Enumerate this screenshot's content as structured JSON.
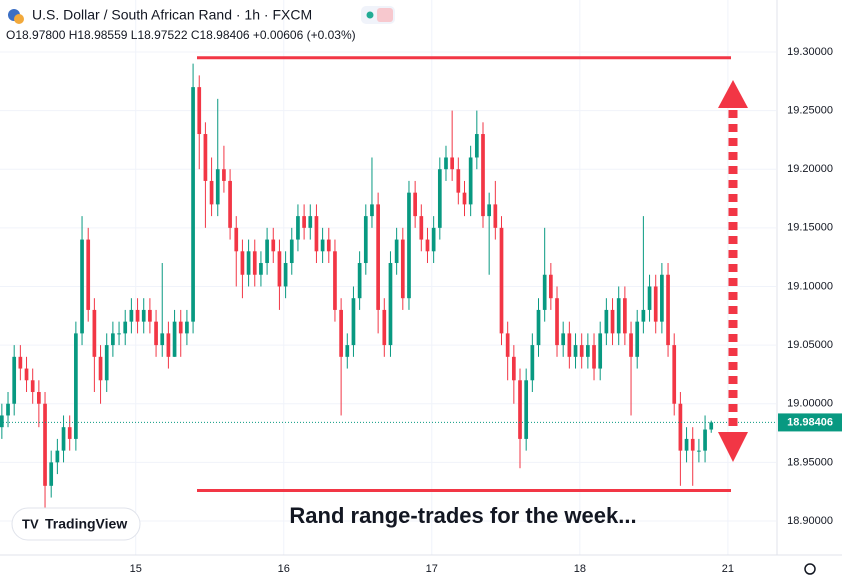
{
  "chart_data": {
    "type": "candlestick",
    "title": "U.S. Dollar / South African Rand · 1h · FXCM",
    "ohlc_header": "O18.97800 H18.98559 L18.97522 C18.98406 +0.00606 (+0.03%)",
    "annotation": "Rand range-trades for the week...",
    "logo": "TradingView",
    "up_color": "#089981",
    "down_color": "#f23645",
    "annotation_color": "#f23645",
    "range_lines": [
      19.295,
      18.926
    ],
    "ylim": [
      18.871,
      19.3443
    ],
    "yticks": [
      {
        "value": 18.9,
        "label": "18.90000"
      },
      {
        "value": 18.95,
        "label": "18.95000"
      },
      {
        "value": 19.0,
        "label": "19.00000"
      },
      {
        "value": 19.05,
        "label": "19.05000"
      },
      {
        "value": 19.1,
        "label": "19.10000"
      },
      {
        "value": 19.15,
        "label": "19.15000"
      },
      {
        "value": 19.2,
        "label": "19.20000"
      },
      {
        "value": 19.25,
        "label": "19.25000"
      },
      {
        "value": 19.3,
        "label": "19.30000"
      }
    ],
    "xlim": [
      -0.3,
      125.5
    ],
    "xticks": [
      {
        "value": 21.7,
        "label": "15"
      },
      {
        "value": 45.7,
        "label": "16"
      },
      {
        "value": 69.7,
        "label": "17"
      },
      {
        "value": 93.7,
        "label": "18"
      },
      {
        "value": 117.7,
        "label": "21"
      }
    ],
    "grid": true,
    "ohlc": [
      [
        18.98,
        19.0,
        18.97,
        18.99
      ],
      [
        18.99,
        19.01,
        18.98,
        19.0
      ],
      [
        19.0,
        19.05,
        18.99,
        19.04
      ],
      [
        19.04,
        19.05,
        19.02,
        19.03
      ],
      [
        19.03,
        19.04,
        19.01,
        19.02
      ],
      [
        19.02,
        19.03,
        19.0,
        19.01
      ],
      [
        19.01,
        19.02,
        18.98,
        19.0
      ],
      [
        19.0,
        19.01,
        18.91,
        18.93
      ],
      [
        18.93,
        18.96,
        18.92,
        18.95
      ],
      [
        18.95,
        18.97,
        18.94,
        18.96
      ],
      [
        18.96,
        18.99,
        18.95,
        18.98
      ],
      [
        18.98,
        18.99,
        18.96,
        18.97
      ],
      [
        18.97,
        19.07,
        18.96,
        19.06
      ],
      [
        19.06,
        19.16,
        19.05,
        19.14
      ],
      [
        19.14,
        19.15,
        19.07,
        19.08
      ],
      [
        19.08,
        19.09,
        19.01,
        19.04
      ],
      [
        19.04,
        19.05,
        19.0,
        19.02
      ],
      [
        19.02,
        19.06,
        19.01,
        19.05
      ],
      [
        19.05,
        19.07,
        19.04,
        19.06
      ],
      [
        19.06,
        19.07,
        19.05,
        19.06
      ],
      [
        19.06,
        19.08,
        19.05,
        19.07
      ],
      [
        19.07,
        19.09,
        19.06,
        19.08
      ],
      [
        19.08,
        19.09,
        19.06,
        19.07
      ],
      [
        19.07,
        19.09,
        19.06,
        19.08
      ],
      [
        19.08,
        19.09,
        19.06,
        19.07
      ],
      [
        19.07,
        19.08,
        19.04,
        19.05
      ],
      [
        19.05,
        19.12,
        19.04,
        19.06
      ],
      [
        19.06,
        19.07,
        19.03,
        19.04
      ],
      [
        19.04,
        19.08,
        19.04,
        19.07
      ],
      [
        19.07,
        19.08,
        19.04,
        19.06
      ],
      [
        19.06,
        19.08,
        19.05,
        19.07
      ],
      [
        19.07,
        19.29,
        19.06,
        19.27
      ],
      [
        19.27,
        19.28,
        19.2,
        19.23
      ],
      [
        19.23,
        19.24,
        19.15,
        19.19
      ],
      [
        19.19,
        19.21,
        19.16,
        19.17
      ],
      [
        19.17,
        19.26,
        19.16,
        19.2
      ],
      [
        19.2,
        19.22,
        19.18,
        19.19
      ],
      [
        19.19,
        19.2,
        19.14,
        19.15
      ],
      [
        19.15,
        19.16,
        19.1,
        19.13
      ],
      [
        19.13,
        19.14,
        19.09,
        19.11
      ],
      [
        19.11,
        19.14,
        19.1,
        19.13
      ],
      [
        19.13,
        19.14,
        19.1,
        19.11
      ],
      [
        19.11,
        19.13,
        19.1,
        19.12
      ],
      [
        19.12,
        19.15,
        19.11,
        19.14
      ],
      [
        19.14,
        19.15,
        19.12,
        19.13
      ],
      [
        19.13,
        19.14,
        19.08,
        19.1
      ],
      [
        19.1,
        19.13,
        19.09,
        19.12
      ],
      [
        19.12,
        19.15,
        19.11,
        19.14
      ],
      [
        19.14,
        19.17,
        19.13,
        19.16
      ],
      [
        19.16,
        19.17,
        19.14,
        19.15
      ],
      [
        19.15,
        19.17,
        19.14,
        19.16
      ],
      [
        19.16,
        19.17,
        19.12,
        19.13
      ],
      [
        19.13,
        19.15,
        19.12,
        19.14
      ],
      [
        19.14,
        19.15,
        19.12,
        19.13
      ],
      [
        19.13,
        19.14,
        19.07,
        19.08
      ],
      [
        19.08,
        19.09,
        18.99,
        19.04
      ],
      [
        19.04,
        19.06,
        19.03,
        19.05
      ],
      [
        19.05,
        19.1,
        19.04,
        19.09
      ],
      [
        19.09,
        19.13,
        19.08,
        19.12
      ],
      [
        19.12,
        19.17,
        19.11,
        19.16
      ],
      [
        19.16,
        19.21,
        19.15,
        19.17
      ],
      [
        19.17,
        19.18,
        19.06,
        19.08
      ],
      [
        19.08,
        19.09,
        19.04,
        19.05
      ],
      [
        19.05,
        19.13,
        19.04,
        19.12
      ],
      [
        19.12,
        19.15,
        19.11,
        19.14
      ],
      [
        19.14,
        19.15,
        19.08,
        19.09
      ],
      [
        19.09,
        19.19,
        19.08,
        19.18
      ],
      [
        19.18,
        19.19,
        19.15,
        19.16
      ],
      [
        19.16,
        19.17,
        19.13,
        19.14
      ],
      [
        19.14,
        19.15,
        19.12,
        19.13
      ],
      [
        19.13,
        19.16,
        19.12,
        19.15
      ],
      [
        19.15,
        19.21,
        19.14,
        19.2
      ],
      [
        19.2,
        19.22,
        19.19,
        19.21
      ],
      [
        19.21,
        19.25,
        19.19,
        19.2
      ],
      [
        19.2,
        19.21,
        19.17,
        19.18
      ],
      [
        19.18,
        19.19,
        19.16,
        19.17
      ],
      [
        19.17,
        19.22,
        19.16,
        19.21
      ],
      [
        19.21,
        19.25,
        19.2,
        19.23
      ],
      [
        19.23,
        19.24,
        19.15,
        19.16
      ],
      [
        19.16,
        19.18,
        19.11,
        19.17
      ],
      [
        19.17,
        19.19,
        19.14,
        19.15
      ],
      [
        19.15,
        19.16,
        19.05,
        19.06
      ],
      [
        19.06,
        19.07,
        19.02,
        19.04
      ],
      [
        19.04,
        19.05,
        19.0,
        19.02
      ],
      [
        19.02,
        19.03,
        18.945,
        18.97
      ],
      [
        18.97,
        19.03,
        18.96,
        19.02
      ],
      [
        19.02,
        19.06,
        19.01,
        19.05
      ],
      [
        19.05,
        19.09,
        19.04,
        19.08
      ],
      [
        19.08,
        19.15,
        19.07,
        19.11
      ],
      [
        19.11,
        19.12,
        19.08,
        19.09
      ],
      [
        19.09,
        19.1,
        19.04,
        19.05
      ],
      [
        19.05,
        19.07,
        19.04,
        19.06
      ],
      [
        19.06,
        19.07,
        19.03,
        19.04
      ],
      [
        19.04,
        19.06,
        19.03,
        19.05
      ],
      [
        19.05,
        19.06,
        19.03,
        19.04
      ],
      [
        19.04,
        19.06,
        19.03,
        19.05
      ],
      [
        19.05,
        19.06,
        19.02,
        19.03
      ],
      [
        19.03,
        19.07,
        19.02,
        19.06
      ],
      [
        19.06,
        19.09,
        19.05,
        19.08
      ],
      [
        19.08,
        19.09,
        19.05,
        19.06
      ],
      [
        19.06,
        19.1,
        19.05,
        19.09
      ],
      [
        19.09,
        19.1,
        19.05,
        19.06
      ],
      [
        19.06,
        19.07,
        18.99,
        19.04
      ],
      [
        19.04,
        19.08,
        19.03,
        19.07
      ],
      [
        19.07,
        19.16,
        19.06,
        19.08
      ],
      [
        19.08,
        19.11,
        19.07,
        19.1
      ],
      [
        19.1,
        19.11,
        19.06,
        19.07
      ],
      [
        19.07,
        19.12,
        19.06,
        19.11
      ],
      [
        19.11,
        19.12,
        19.04,
        19.05
      ],
      [
        19.05,
        19.06,
        18.99,
        19.0
      ],
      [
        19.0,
        19.01,
        18.93,
        18.96
      ],
      [
        18.96,
        18.98,
        18.95,
        18.97
      ],
      [
        18.97,
        18.98,
        18.93,
        18.96
      ],
      [
        18.96,
        18.97,
        18.95,
        18.96
      ],
      [
        18.96,
        18.99,
        18.95,
        18.978
      ],
      [
        18.978,
        18.98559,
        18.97522,
        18.98406
      ]
    ]
  }
}
